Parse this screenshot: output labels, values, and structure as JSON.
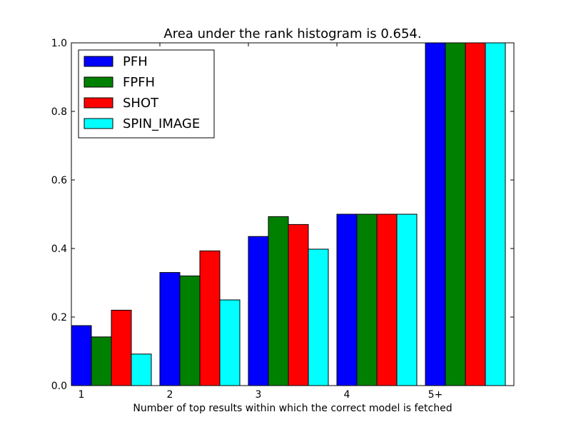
{
  "chart_data": {
    "type": "bar",
    "title": "Area under the rank histogram is 0.654.",
    "xlabel": "Number of top results within which the correct model is fetched",
    "ylabel": "",
    "categories": [
      "1",
      "2",
      "3",
      "4",
      "5+"
    ],
    "ylim": [
      0.0,
      1.0
    ],
    "yticks": [
      "0.0",
      "0.2",
      "0.4",
      "0.6",
      "0.8",
      "1.0"
    ],
    "grid": false,
    "legend_position": "top-left",
    "series": [
      {
        "name": "PFH",
        "color": "#0000ff",
        "values": [
          0.175,
          0.33,
          0.435,
          0.5,
          1.0
        ]
      },
      {
        "name": "FPFH",
        "color": "#008000",
        "values": [
          0.142,
          0.32,
          0.493,
          0.5,
          1.0
        ]
      },
      {
        "name": "SHOT",
        "color": "#ff0000",
        "values": [
          0.22,
          0.393,
          0.47,
          0.5,
          1.0
        ]
      },
      {
        "name": "SPIN_IMAGE",
        "color": "#00ffff",
        "values": [
          0.092,
          0.25,
          0.398,
          0.5,
          1.0
        ]
      }
    ]
  }
}
